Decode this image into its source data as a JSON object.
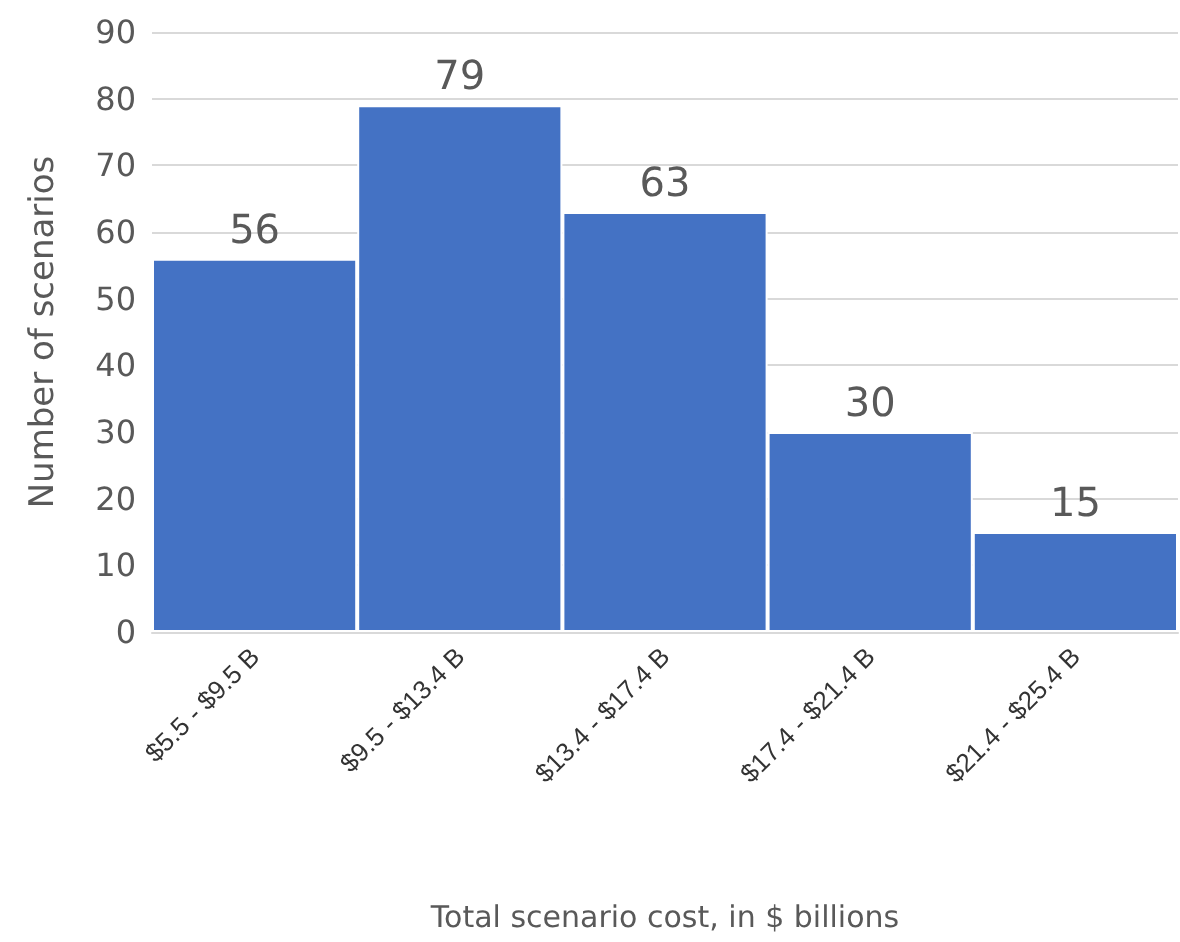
{
  "chart_data": {
    "type": "bar",
    "xlabel": "Total scenario cost, in $ billions",
    "ylabel": "Number of scenarios",
    "categories": [
      "$5.5 - $9.5 B",
      "$9.5 - $13.4 B",
      "$13.4 - $17.4 B",
      "$17.4 - $21.4 B",
      "$21.4 - $25.4 B"
    ],
    "values": [
      56,
      79,
      63,
      30,
      15
    ],
    "color": "#4472c4",
    "ylim": [
      0,
      90
    ],
    "yticks": [
      0,
      10,
      20,
      30,
      40,
      50,
      60,
      70,
      80,
      90
    ],
    "grid": "y",
    "data_labels": true
  }
}
